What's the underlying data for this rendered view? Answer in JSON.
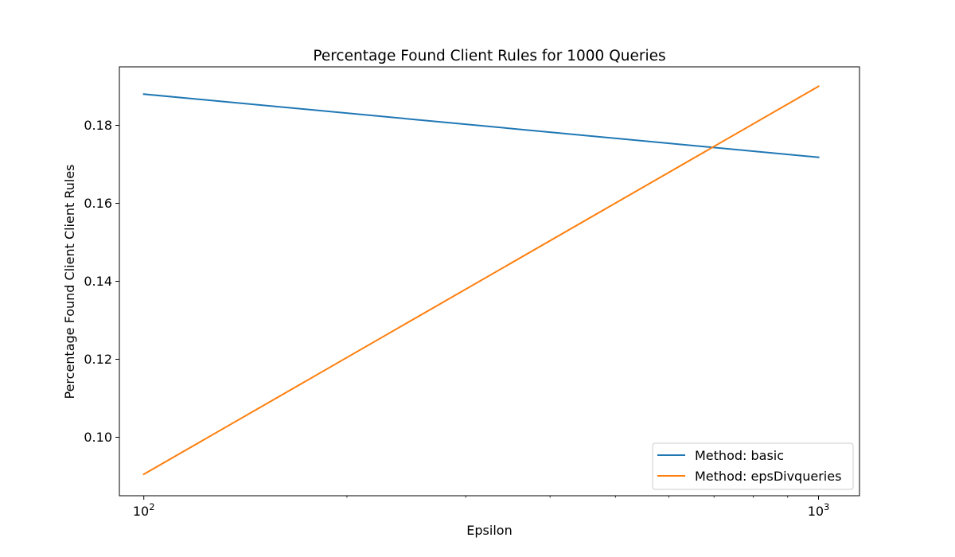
{
  "chart_data": {
    "type": "line",
    "title": "Percentage Found Client Rules for 1000 Queries",
    "xlabel": "Epsilon",
    "ylabel": "Percentage Found Client Client Rules",
    "xscale": "log",
    "xlim": [
      92,
      1150
    ],
    "ylim": [
      0.085,
      0.195
    ],
    "x_ticks": [
      {
        "value": 100,
        "base": "10",
        "exp": "2"
      },
      {
        "value": 1000,
        "base": "10",
        "exp": "3"
      }
    ],
    "y_ticks": [
      {
        "value": 0.1,
        "label": "0.10"
      },
      {
        "value": 0.12,
        "label": "0.12"
      },
      {
        "value": 0.14,
        "label": "0.14"
      },
      {
        "value": 0.16,
        "label": "0.16"
      },
      {
        "value": 0.18,
        "label": "0.18"
      }
    ],
    "series": [
      {
        "name": "Method: basic",
        "color": "#1f77b4",
        "x": [
          100,
          1000
        ],
        "y": [
          0.188,
          0.1718
        ]
      },
      {
        "name": "Method: epsDivqueries",
        "color": "#ff7f0e",
        "x": [
          100,
          1000
        ],
        "y": [
          0.0905,
          0.19
        ]
      }
    ],
    "legend_position": "lower-right",
    "grid": false
  }
}
